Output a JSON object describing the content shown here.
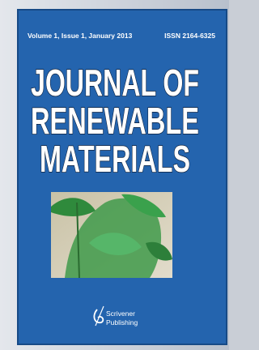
{
  "header": {
    "issue": "Volume 1, Issue 1, January 2013",
    "issn": "ISSN 2164-6325"
  },
  "title": {
    "lines": [
      "JOURNAL OF",
      "RENEWABLE",
      "MATERIALS"
    ]
  },
  "publisher": {
    "lines": [
      "Scrivener",
      "Publishing"
    ]
  }
}
